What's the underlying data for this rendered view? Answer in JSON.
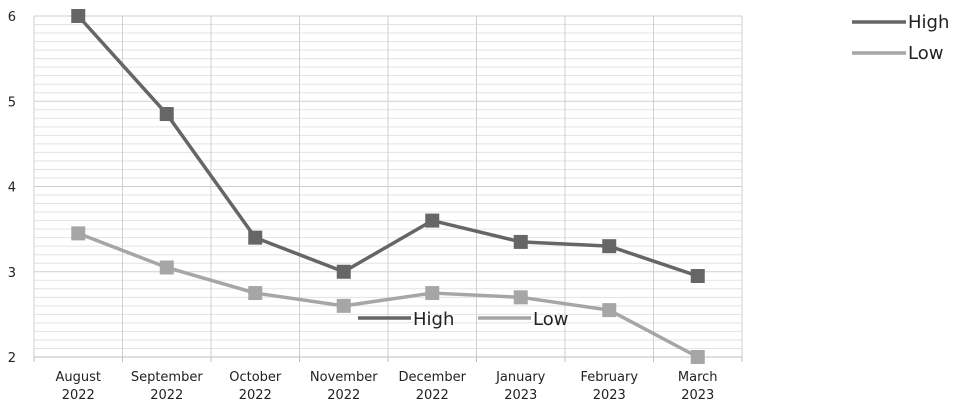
{
  "chart_data": {
    "type": "line",
    "categories": [
      [
        "August",
        "2022"
      ],
      [
        "September",
        "2022"
      ],
      [
        "October",
        "2022"
      ],
      [
        "November",
        "2022"
      ],
      [
        "December",
        "2022"
      ],
      [
        "January",
        "2023"
      ],
      [
        "February",
        "2023"
      ],
      [
        "March",
        "2023"
      ]
    ],
    "series": [
      {
        "name": "High",
        "color": "#666666",
        "values": [
          6.0,
          4.85,
          3.4,
          3.0,
          3.6,
          3.35,
          3.3,
          2.95
        ]
      },
      {
        "name": "Low",
        "color": "#a6a6a6",
        "values": [
          3.45,
          3.05,
          2.75,
          2.6,
          2.75,
          2.7,
          2.55,
          2.0
        ]
      }
    ],
    "ylim": [
      2,
      6
    ],
    "yticks": [
      2,
      3,
      4,
      5,
      6
    ],
    "minor_grid_step": 0.1,
    "grid": true,
    "marker": "square",
    "legends": [
      "top-right",
      "inside-bottom-center"
    ]
  }
}
